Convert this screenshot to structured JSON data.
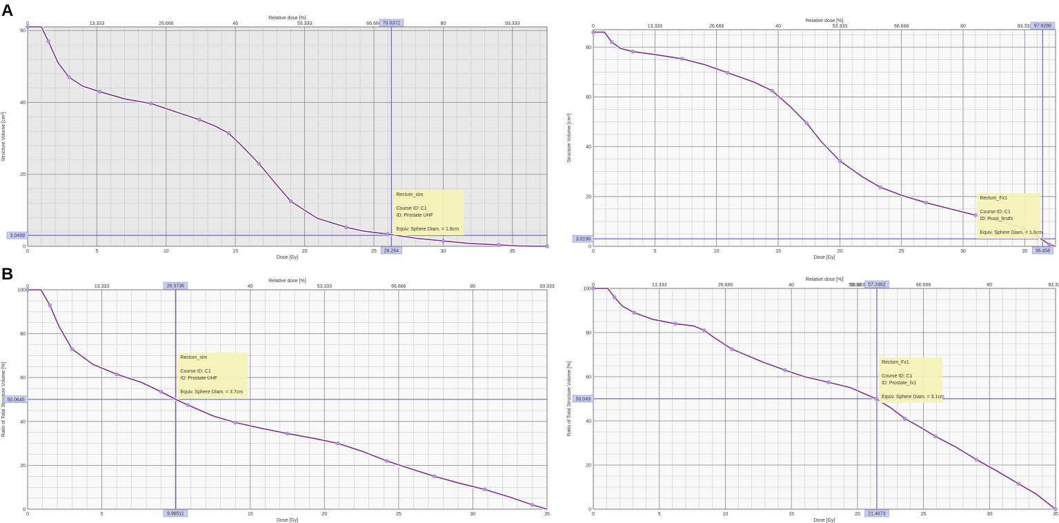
{
  "panels": [
    {
      "letter": "A"
    },
    {
      "letter": "B"
    }
  ],
  "chart_data": [
    {
      "type": "line",
      "panel": "A",
      "xlabel": "Dose [Gy]",
      "ylabel": "Structure Volume [cm³]",
      "top_axis_label": "Relative dose [%]",
      "xlim": [
        0,
        37.5
      ],
      "ylim": [
        0,
        61
      ],
      "x_ticks": [
        0,
        5,
        10,
        15,
        20,
        25,
        30,
        35
      ],
      "y_ticks": [
        0,
        20,
        40,
        60
      ],
      "top_ticks": [
        "0",
        "13.333",
        "26.666",
        "40",
        "53.333",
        "66.666",
        "80",
        "93.333"
      ],
      "background": "#e8e8e8",
      "line_color": "#7b2c8e",
      "series": [
        {
          "x": [
            0,
            1,
            1.5,
            2.2,
            3,
            4,
            5.2,
            7,
            8.9,
            11,
            12.4,
            13.5,
            14.5,
            15.5,
            16.7,
            18,
            19,
            20.9,
            23,
            24.3,
            26,
            28.1,
            30,
            31.9,
            34,
            35.6,
            37.5
          ],
          "y": [
            61,
            61,
            57,
            51,
            47,
            44.5,
            43,
            41,
            39.7,
            37,
            35.2,
            33.5,
            31.5,
            27.8,
            23,
            17,
            12.5,
            7.8,
            5.3,
            4.2,
            3.4,
            2.2,
            1.5,
            0.8,
            0.4,
            0.1,
            0
          ]
        }
      ],
      "cursor": {
        "x": 26.264,
        "y": 3.0499,
        "x_label": "26.264",
        "y_label": "3.0499",
        "top_label": "70.0372"
      },
      "tooltip": {
        "lines": [
          "Rectum_sim",
          "",
          "Course ID: C1",
          " ID: Prostate UHF",
          "",
          "Equiv. Sphere Diam. = 1.8cm"
        ]
      }
    },
    {
      "type": "line",
      "panel": "A",
      "xlabel": "Dose [Gy]",
      "ylabel": "Structure Volume [cm³]",
      "top_axis_label": "Relative dose [%]",
      "xlim": [
        0,
        37.5
      ],
      "ylim": [
        0,
        87
      ],
      "x_ticks": [
        0,
        5,
        10,
        15,
        20,
        25,
        30,
        35
      ],
      "y_ticks": [
        0,
        20,
        40,
        60,
        80
      ],
      "top_ticks": [
        "0",
        "13.333",
        "26.666",
        "40",
        "53.333",
        "66.666",
        "80",
        "93.333"
      ],
      "background": "#f8f8f8",
      "line_color": "#7b2c8e",
      "series": [
        {
          "x": [
            0,
            0.9,
            1.5,
            2.2,
            3.2,
            5,
            7.2,
            9,
            10.9,
            13,
            14.5,
            16,
            17.3,
            18.5,
            20,
            21.8,
            23.3,
            25,
            27,
            29,
            31,
            33,
            34.8,
            35.9,
            37,
            37.5
          ],
          "y": [
            86,
            86,
            82,
            79.5,
            78.2,
            77,
            75.3,
            73,
            69.7,
            66,
            62.5,
            56,
            49.5,
            42,
            34.3,
            28,
            23.7,
            20.5,
            17.5,
            15,
            12.5,
            10,
            7.5,
            4.5,
            0.7,
            0
          ]
        }
      ],
      "cursor": {
        "x": 36.458,
        "y": 3.0196,
        "x_label": "36.458",
        "y_label": "3.0196",
        "top_label": "97.8288"
      },
      "tooltip": {
        "lines": [
          "Rectum_Fx1",
          "",
          "Course ID: C1",
          " ID: Prost_firstfx",
          "",
          "Equiv. Sphere Diam. = 1.6cm"
        ]
      }
    },
    {
      "type": "line",
      "panel": "B",
      "xlabel": "Dose [Gy]",
      "ylabel": "Ratio of Total Structure Volume [%]",
      "top_axis_label": "Relative dose [%]",
      "xlim": [
        0,
        35
      ],
      "ylim": [
        0,
        100
      ],
      "x_ticks": [
        0,
        5,
        10,
        15,
        20,
        25,
        30,
        35
      ],
      "y_ticks": [
        0,
        20,
        40,
        60,
        80,
        100
      ],
      "top_ticks": [
        "0",
        "13.333",
        "26.666",
        "40",
        "53.333",
        "66.666",
        "80",
        "93.333"
      ],
      "background": "#f8f8f8",
      "line_color": "#7b2c8e",
      "series": [
        {
          "x": [
            0,
            0.9,
            1.5,
            2.1,
            3,
            4.4,
            6,
            7.7,
            9,
            10,
            10.8,
            12.5,
            14,
            16,
            17.5,
            19.5,
            20.9,
            22.5,
            24.2,
            26,
            27.4,
            29,
            30.8,
            32.5,
            34,
            35
          ],
          "y": [
            100,
            100,
            93,
            83.5,
            73,
            66,
            61.5,
            57.7,
            53.5,
            50,
            47.5,
            42.5,
            39.5,
            36.5,
            34.5,
            32,
            30,
            26.5,
            22,
            18,
            15,
            12,
            9,
            5.5,
            2,
            0
          ]
        }
      ],
      "cursor": {
        "x": 9.9651,
        "y": 50.0645,
        "x_label": "9.96511",
        "y_label": "50.0645",
        "top_label": "26.5736"
      },
      "tooltip": {
        "lines": [
          "Rectum_sim",
          "",
          "Course ID: C1",
          " ID: Prostate-UHF",
          "",
          "Equiv. Sphere Diam. = 3.7cm"
        ]
      }
    },
    {
      "type": "line",
      "panel": "B",
      "xlabel": "Dose [Gy]",
      "ylabel": "Ratio of Total Structure Volume [%]",
      "top_axis_label": "Relative dose [%]",
      "xlim": [
        0,
        35
      ],
      "ylim": [
        0,
        100
      ],
      "x_ticks": [
        0,
        5,
        10,
        15,
        20,
        25,
        30,
        35
      ],
      "y_ticks": [
        0,
        20,
        40,
        60,
        80,
        100
      ],
      "top_ticks": [
        "0",
        "13.333",
        "26.666",
        "40",
        "53.333",
        "66.666",
        "80",
        "93.333"
      ],
      "top_ticks_extra": [
        "53.33"
      ],
      "background": "#f8f8f8",
      "line_color": "#7b2c8e",
      "series": [
        {
          "x": [
            0,
            1.1,
            1.6,
            2.2,
            3.1,
            4.5,
            6.2,
            7.6,
            8.4,
            9.2,
            10.5,
            12.9,
            14.5,
            16,
            17.8,
            19.5,
            21.4,
            22.5,
            23.6,
            24.8,
            25.9,
            27.5,
            29,
            30.5,
            32.2,
            33.5,
            35
          ],
          "y": [
            100,
            100,
            96,
            92,
            89,
            86,
            84,
            83,
            81,
            77.5,
            72.5,
            66.5,
            63,
            60,
            57.5,
            55,
            50,
            46,
            41,
            37,
            33,
            28,
            22.5,
            17.5,
            11.5,
            7,
            0
          ]
        }
      ],
      "cursor": {
        "x": 21.4673,
        "y": 50.049,
        "x_label": "21.4673",
        "y_label": "50.049",
        "top_label": "57.2462"
      },
      "tooltip": {
        "lines": [
          "Rectum_Fx1",
          "",
          "Course ID: C1",
          " ID: Prostate_fx1",
          "",
          "Equiv. Sphere Diam. = 3.1cm"
        ]
      }
    }
  ]
}
